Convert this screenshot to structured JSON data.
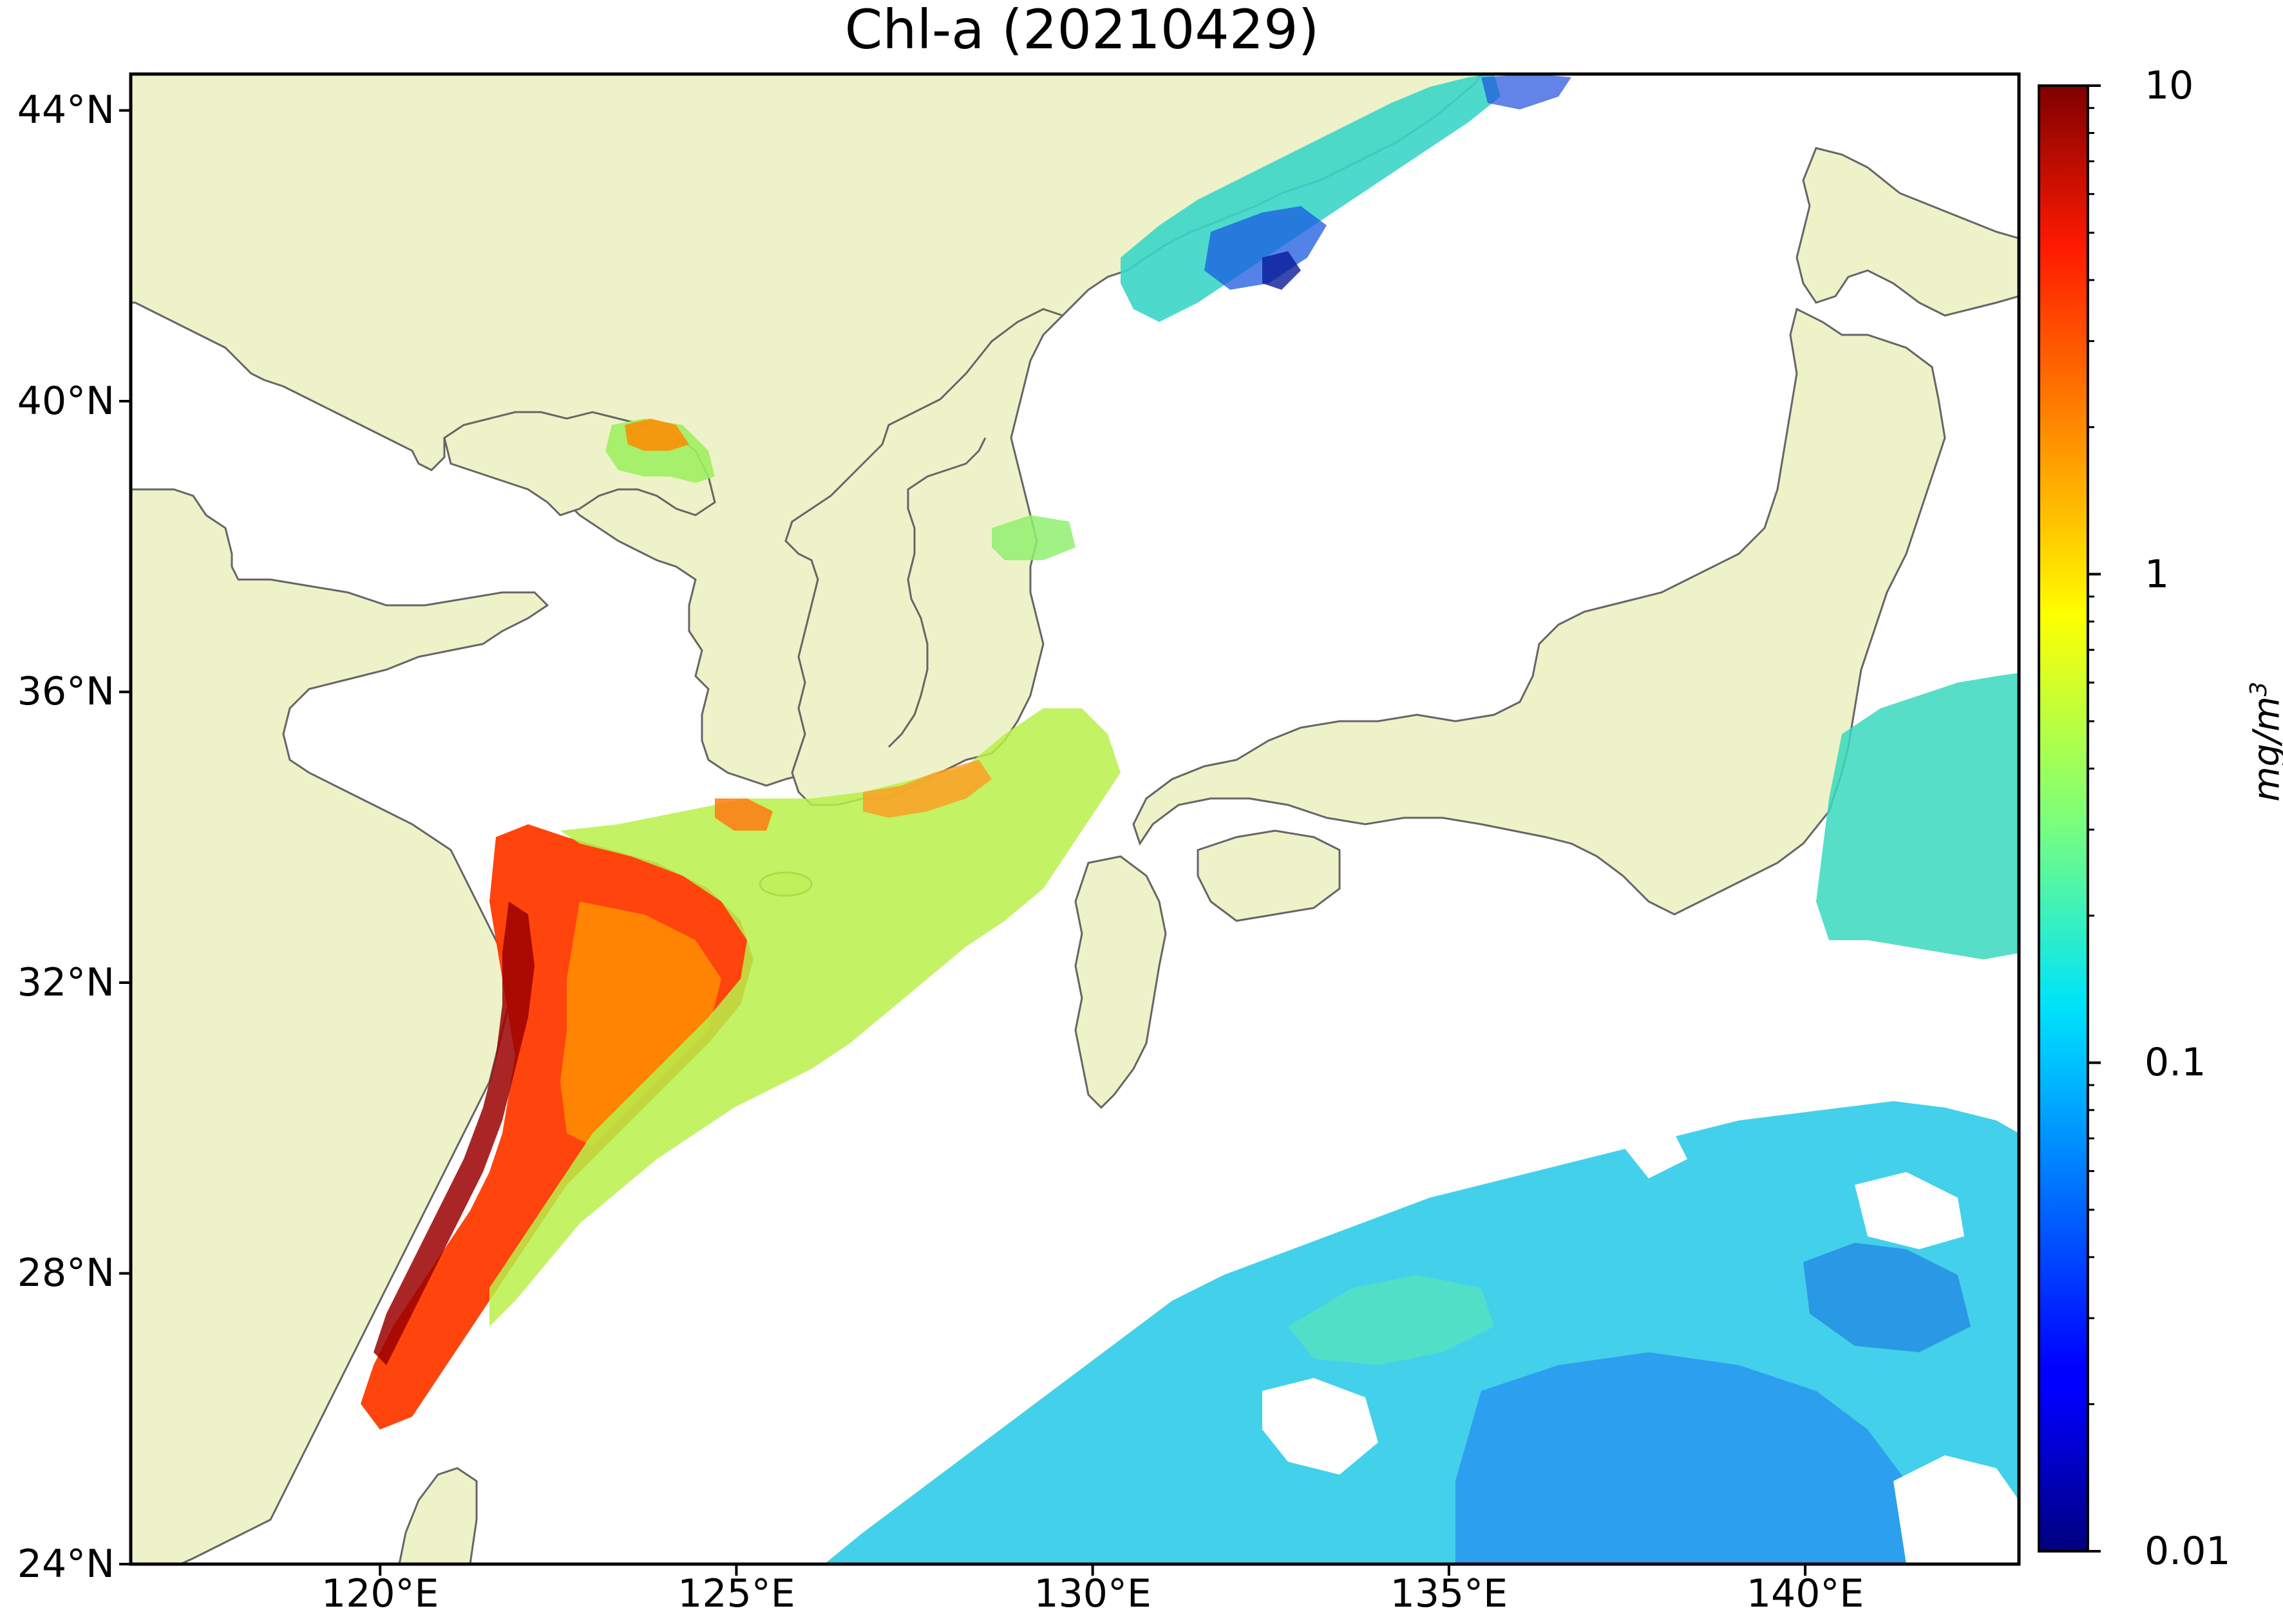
{
  "title": "Chl-a (20210429)",
  "map": {
    "lon_range": [
      116.5,
      143.0
    ],
    "lat_range": [
      24.0,
      44.5
    ],
    "land_color": "#eef2c8",
    "coast_color": "#666666",
    "no_data_color": "#ffffff",
    "lat_ticks": [
      {
        "value": 44,
        "label": "44°N"
      },
      {
        "value": 40,
        "label": "40°N"
      },
      {
        "value": 36,
        "label": "36°N"
      },
      {
        "value": 32,
        "label": "32°N"
      },
      {
        "value": 28,
        "label": "28°N"
      },
      {
        "value": 24,
        "label": "24°N"
      }
    ],
    "lon_ticks": [
      {
        "value": 120,
        "label": "120°E"
      },
      {
        "value": 125,
        "label": "125°E"
      },
      {
        "value": 130,
        "label": "130°E"
      },
      {
        "value": 135,
        "label": "135°E"
      },
      {
        "value": 140,
        "label": "140°E"
      }
    ]
  },
  "colorbar": {
    "scale": "log",
    "colormap": "jet",
    "range": [
      0.01,
      10
    ],
    "major_ticks": [
      {
        "value": 10,
        "label": "10"
      },
      {
        "value": 1,
        "label": "1"
      },
      {
        "value": 0.1,
        "label": "0.1"
      },
      {
        "value": 0.01,
        "label": "0.01"
      }
    ],
    "unit_main": "mg/m",
    "unit_sup": "3"
  }
}
